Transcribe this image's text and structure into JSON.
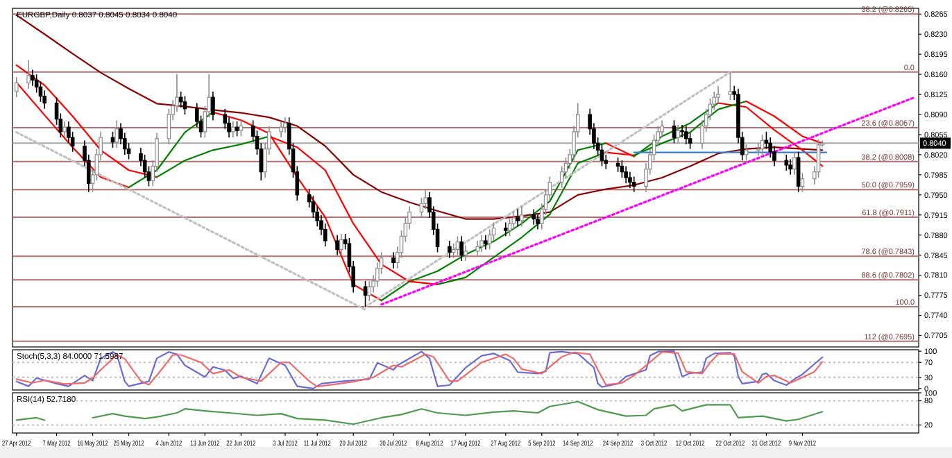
{
  "chart_data": [
    {
      "type": "candlestick",
      "title": "EURGBP,Daily  0.8037 0.8045 0.8034 0.8040",
      "tick_labels": "y",
      "xlim": [
        "2012-04-26",
        "2012-12-08"
      ],
      "ylim": [
        0.7685,
        0.8275
      ],
      "yticks": [
        0.8265,
        {
          "value": 0.823,
          "label": "0.8230"
        },
        0.8195,
        {
          "value": 0.816,
          "label": "0.8160"
        },
        0.8125,
        {
          "value": 0.809,
          "label": "0.8090"
        },
        0.8055,
        {
          "value": 0.802,
          "label": "0.8020"
        },
        0.7985,
        {
          "value": 0.795,
          "label": "0.7950"
        },
        0.7915,
        {
          "value": 0.788,
          "label": "0.7880"
        },
        0.7845,
        {
          "value": 0.781,
          "label": "0.7810"
        },
        0.7775,
        {
          "value": 0.774,
          "label": "0.7740"
        },
        0.7705
      ],
      "x": [
        "2012-04-27",
        "2012-04-30",
        "2012-05-01",
        "2012-05-02",
        "2012-05-03",
        "2012-05-04",
        "2012-05-07",
        "2012-05-08",
        "2012-05-09",
        "2012-05-10",
        "2012-05-11",
        "2012-05-14",
        "2012-05-15",
        "2012-05-16",
        "2012-05-17",
        "2012-05-18",
        "2012-05-21",
        "2012-05-22",
        "2012-05-23",
        "2012-05-24",
        "2012-05-25",
        "2012-05-28",
        "2012-05-29",
        "2012-05-30",
        "2012-05-31",
        "2012-06-01",
        "2012-06-04",
        "2012-06-05",
        "2012-06-06",
        "2012-06-07",
        "2012-06-08",
        "2012-06-11",
        "2012-06-12",
        "2012-06-13",
        "2012-06-14",
        "2012-06-15",
        "2012-06-18",
        "2012-06-19",
        "2012-06-20",
        "2012-06-21",
        "2012-06-22",
        "2012-06-25",
        "2012-06-26",
        "2012-06-27",
        "2012-06-28",
        "2012-06-29",
        "2012-07-02",
        "2012-07-03",
        "2012-07-04",
        "2012-07-05",
        "2012-07-06",
        "2012-07-09",
        "2012-07-10",
        "2012-07-11",
        "2012-07-12",
        "2012-07-13",
        "2012-07-16",
        "2012-07-17",
        "2012-07-18",
        "2012-07-19",
        "2012-07-20",
        "2012-07-23",
        "2012-07-24",
        "2012-07-25",
        "2012-07-26",
        "2012-07-27",
        "2012-07-30",
        "2012-07-31",
        "2012-08-01",
        "2012-08-02",
        "2012-08-03",
        "2012-08-06",
        "2012-08-07",
        "2012-08-08",
        "2012-08-09",
        "2012-08-10",
        "2012-08-13",
        "2012-08-14",
        "2012-08-15",
        "2012-08-16",
        "2012-08-17",
        "2012-08-20",
        "2012-08-21",
        "2012-08-22",
        "2012-08-23",
        "2012-08-24",
        "2012-08-27",
        "2012-08-28",
        "2012-08-29",
        "2012-08-30",
        "2012-08-31",
        "2012-09-03",
        "2012-09-04",
        "2012-09-05",
        "2012-09-06",
        "2012-09-07",
        "2012-09-10",
        "2012-09-11",
        "2012-09-12",
        "2012-09-13",
        "2012-09-14",
        "2012-09-17",
        "2012-09-18",
        "2012-09-19",
        "2012-09-20",
        "2012-09-21",
        "2012-09-24",
        "2012-09-25",
        "2012-09-26",
        "2012-09-27",
        "2012-09-28",
        "2012-10-01",
        "2012-10-02",
        "2012-10-03",
        "2012-10-04",
        "2012-10-05",
        "2012-10-08",
        "2012-10-09",
        "2012-10-10",
        "2012-10-11",
        "2012-10-12",
        "2012-10-15",
        "2012-10-16",
        "2012-10-17",
        "2012-10-18",
        "2012-10-19",
        "2012-10-22",
        "2012-10-23",
        "2012-10-24",
        "2012-10-25",
        "2012-10-26",
        "2012-10-29",
        "2012-10-30",
        "2012-10-31",
        "2012-11-01",
        "2012-11-02",
        "2012-11-05",
        "2012-11-06",
        "2012-11-07",
        "2012-11-08",
        "2012-11-09",
        "2012-11-12",
        "2012-11-13",
        "2012-11-14"
      ],
      "ohlc": [
        [
          0.813,
          0.8155,
          0.812,
          0.8145
        ],
        [
          0.8145,
          0.8185,
          0.8135,
          0.8158
        ],
        [
          0.8158,
          0.8168,
          0.814,
          0.815
        ],
        [
          0.815,
          0.816,
          0.8128,
          0.8138
        ],
        [
          0.8138,
          0.8148,
          0.8112,
          0.8122
        ],
        [
          0.8122,
          0.8132,
          0.81,
          0.811
        ],
        [
          0.811,
          0.812,
          0.8072,
          0.8082
        ],
        [
          0.8082,
          0.8092,
          0.805,
          0.806
        ],
        [
          0.806,
          0.8078,
          0.805,
          0.8068
        ],
        [
          0.8068,
          0.8078,
          0.804,
          0.805
        ],
        [
          0.805,
          0.806,
          0.8025,
          0.8035
        ],
        [
          0.8035,
          0.8045,
          0.8,
          0.801
        ],
        [
          0.801,
          0.802,
          0.7955,
          0.797
        ],
        [
          0.797,
          0.7995,
          0.7955,
          0.7985
        ],
        [
          0.7985,
          0.803,
          0.7975,
          0.802
        ],
        [
          0.802,
          0.806,
          0.801,
          0.805
        ],
        [
          0.805,
          0.806,
          0.8032,
          0.8042
        ],
        [
          0.8042,
          0.808,
          0.8032,
          0.8065
        ],
        [
          0.8065,
          0.8075,
          0.8038,
          0.8048
        ],
        [
          0.8048,
          0.8058,
          0.802,
          0.803
        ],
        [
          0.803,
          0.804,
          0.8012,
          0.8022
        ],
        [
          0.8022,
          0.8032,
          0.8,
          0.801
        ],
        [
          0.801,
          0.802,
          0.798,
          0.799
        ],
        [
          0.799,
          0.8,
          0.7965,
          0.7975
        ],
        [
          0.7975,
          0.801,
          0.7965,
          0.8
        ],
        [
          0.8,
          0.8058,
          0.799,
          0.8048
        ],
        [
          0.8048,
          0.81,
          0.8038,
          0.809
        ],
        [
          0.809,
          0.8115,
          0.808,
          0.8105
        ],
        [
          0.8105,
          0.816,
          0.8095,
          0.812
        ],
        [
          0.812,
          0.813,
          0.8102,
          0.8112
        ],
        [
          0.8112,
          0.8122,
          0.809,
          0.81
        ],
        [
          0.81,
          0.811,
          0.8068,
          0.8078
        ],
        [
          0.8078,
          0.8088,
          0.805,
          0.806
        ],
        [
          0.806,
          0.8105,
          0.805,
          0.8095
        ],
        [
          0.8095,
          0.816,
          0.8085,
          0.812
        ],
        [
          0.812,
          0.813,
          0.808,
          0.809
        ],
        [
          0.809,
          0.81,
          0.8065,
          0.8075
        ],
        [
          0.8075,
          0.8085,
          0.805,
          0.806
        ],
        [
          0.806,
          0.8078,
          0.805,
          0.8068
        ],
        [
          0.8068,
          0.8078,
          0.8052,
          0.8062
        ],
        [
          0.8062,
          0.808,
          0.8052,
          0.807
        ],
        [
          0.807,
          0.808,
          0.8042,
          0.8052
        ],
        [
          0.8052,
          0.8062,
          0.802,
          0.803
        ],
        [
          0.803,
          0.804,
          0.7975,
          0.799
        ],
        [
          0.799,
          0.804,
          0.798,
          0.803
        ],
        [
          0.803,
          0.807,
          0.802,
          0.806
        ],
        [
          0.806,
          0.8078,
          0.805,
          0.8068
        ],
        [
          0.8068,
          0.8085,
          0.8058,
          0.8075
        ],
        [
          0.8075,
          0.8085,
          0.802,
          0.803
        ],
        [
          0.803,
          0.804,
          0.798,
          0.799
        ],
        [
          0.799,
          0.8,
          0.794,
          0.795
        ],
        [
          0.795,
          0.796,
          0.7928,
          0.7938
        ],
        [
          0.7938,
          0.7948,
          0.791,
          0.792
        ],
        [
          0.792,
          0.793,
          0.7895,
          0.7905
        ],
        [
          0.7905,
          0.7915,
          0.788,
          0.789
        ],
        [
          0.789,
          0.79,
          0.786,
          0.787
        ],
        [
          0.787,
          0.788,
          0.7845,
          0.7855
        ],
        [
          0.7855,
          0.7882,
          0.7845,
          0.7872
        ],
        [
          0.7872,
          0.7882,
          0.7855,
          0.7865
        ],
        [
          0.7865,
          0.7875,
          0.7815,
          0.7825
        ],
        [
          0.7825,
          0.7835,
          0.778,
          0.779
        ],
        [
          0.779,
          0.78,
          0.7755,
          0.7775
        ],
        [
          0.7775,
          0.78,
          0.7765,
          0.779
        ],
        [
          0.779,
          0.781,
          0.778,
          0.78
        ],
        [
          0.78,
          0.7832,
          0.779,
          0.7822
        ],
        [
          0.7822,
          0.785,
          0.7812,
          0.784
        ],
        [
          0.784,
          0.785,
          0.7822,
          0.7832
        ],
        [
          0.7832,
          0.786,
          0.7822,
          0.785
        ],
        [
          0.785,
          0.7888,
          0.784,
          0.7878
        ],
        [
          0.7878,
          0.791,
          0.7868,
          0.79
        ],
        [
          0.79,
          0.793,
          0.789,
          0.792
        ],
        [
          0.792,
          0.7945,
          0.791,
          0.7935
        ],
        [
          0.7935,
          0.796,
          0.7925,
          0.7945
        ],
        [
          0.7945,
          0.7955,
          0.791,
          0.792
        ],
        [
          0.792,
          0.793,
          0.788,
          0.789
        ],
        [
          0.789,
          0.79,
          0.785,
          0.786
        ],
        [
          0.786,
          0.787,
          0.784,
          0.785
        ],
        [
          0.785,
          0.7865,
          0.784,
          0.7855
        ],
        [
          0.7855,
          0.7878,
          0.7845,
          0.7868
        ],
        [
          0.7868,
          0.7878,
          0.7835,
          0.7845
        ],
        [
          0.7845,
          0.7862,
          0.7835,
          0.7852
        ],
        [
          0.7852,
          0.787,
          0.7842,
          0.786
        ],
        [
          0.786,
          0.788,
          0.785,
          0.787
        ],
        [
          0.787,
          0.788,
          0.7855,
          0.7865
        ],
        [
          0.7865,
          0.789,
          0.7855,
          0.788
        ],
        [
          0.788,
          0.7902,
          0.787,
          0.7892
        ],
        [
          0.7892,
          0.7902,
          0.7878,
          0.7888
        ],
        [
          0.7888,
          0.791,
          0.7878,
          0.79
        ],
        [
          0.79,
          0.792,
          0.789,
          0.791
        ],
        [
          0.791,
          0.7925,
          0.7895,
          0.7905
        ],
        [
          0.7905,
          0.793,
          0.7895,
          0.7915
        ],
        [
          0.7915,
          0.7925,
          0.7898,
          0.7908
        ],
        [
          0.7908,
          0.7918,
          0.789,
          0.79
        ],
        [
          0.79,
          0.7935,
          0.789,
          0.7925
        ],
        [
          0.7925,
          0.796,
          0.7915,
          0.795
        ],
        [
          0.795,
          0.7982,
          0.794,
          0.7972
        ],
        [
          0.7972,
          0.8,
          0.7962,
          0.799
        ],
        [
          0.799,
          0.8015,
          0.798,
          0.8005
        ],
        [
          0.8005,
          0.803,
          0.7995,
          0.802
        ],
        [
          0.802,
          0.807,
          0.801,
          0.806
        ],
        [
          0.806,
          0.811,
          0.805,
          0.809
        ],
        [
          0.809,
          0.81,
          0.8055,
          0.8065
        ],
        [
          0.8065,
          0.8075,
          0.803,
          0.804
        ],
        [
          0.804,
          0.805,
          0.8018,
          0.8028
        ],
        [
          0.8028,
          0.8038,
          0.8,
          0.801
        ],
        [
          0.801,
          0.802,
          0.7995,
          0.8005
        ],
        [
          0.8005,
          0.8015,
          0.799,
          0.8
        ],
        [
          0.8,
          0.801,
          0.798,
          0.799
        ],
        [
          0.799,
          0.8,
          0.797,
          0.798
        ],
        [
          0.798,
          0.799,
          0.7962,
          0.7972
        ],
        [
          0.7972,
          0.7982,
          0.7955,
          0.7965
        ],
        [
          0.7965,
          0.8005,
          0.7955,
          0.7995
        ],
        [
          0.7995,
          0.803,
          0.7985,
          0.802
        ],
        [
          0.802,
          0.8055,
          0.801,
          0.8045
        ],
        [
          0.8045,
          0.807,
          0.8035,
          0.806
        ],
        [
          0.806,
          0.808,
          0.805,
          0.807
        ],
        [
          0.807,
          0.808,
          0.804,
          0.805
        ],
        [
          0.805,
          0.8072,
          0.804,
          0.8062
        ],
        [
          0.8062,
          0.8072,
          0.805,
          0.806
        ],
        [
          0.806,
          0.807,
          0.8038,
          0.8048
        ],
        [
          0.8048,
          0.8058,
          0.803,
          0.804
        ],
        [
          0.804,
          0.808,
          0.803,
          0.807
        ],
        [
          0.807,
          0.81,
          0.806,
          0.809
        ],
        [
          0.809,
          0.8118,
          0.808,
          0.8108
        ],
        [
          0.8108,
          0.813,
          0.8098,
          0.812
        ],
        [
          0.812,
          0.814,
          0.811,
          0.8125
        ],
        [
          0.8125,
          0.8164,
          0.8115,
          0.813
        ],
        [
          0.813,
          0.814,
          0.8115,
          0.8125
        ],
        [
          0.8125,
          0.8135,
          0.804,
          0.805
        ],
        [
          0.805,
          0.806,
          0.801,
          0.802
        ],
        [
          0.802,
          0.8038,
          0.801,
          0.8028
        ],
        [
          0.8028,
          0.804,
          0.8018,
          0.803
        ],
        [
          0.803,
          0.8055,
          0.802,
          0.8045
        ],
        [
          0.8045,
          0.806,
          0.803,
          0.804
        ],
        [
          0.804,
          0.805,
          0.8015,
          0.8025
        ],
        [
          0.8025,
          0.8035,
          0.8,
          0.801
        ],
        [
          0.801,
          0.802,
          0.7992,
          0.8002
        ],
        [
          0.8002,
          0.8012,
          0.7985,
          0.7995
        ],
        [
          0.7995,
          0.8025,
          0.7985,
          0.8015
        ],
        [
          0.8015,
          0.8025,
          0.7955,
          0.7965
        ],
        [
          0.7965,
          0.7988,
          0.7955,
          0.7978
        ],
        [
          0.7978,
          0.8,
          0.7968,
          0.799
        ],
        [
          0.799,
          0.8047,
          0.798,
          0.8037
        ],
        [
          0.8037,
          0.8045,
          0.8034,
          0.804
        ]
      ],
      "series": [
        {
          "type": "line",
          "color": "#8b0000",
          "x": [
            "2012-04-27",
            "2012-05-04",
            "2012-05-11",
            "2012-05-18",
            "2012-05-25",
            "2012-06-01",
            "2012-06-08",
            "2012-06-15",
            "2012-06-22",
            "2012-06-29",
            "2012-07-06",
            "2012-07-13",
            "2012-07-20",
            "2012-07-27",
            "2012-08-03",
            "2012-08-10",
            "2012-08-17",
            "2012-08-24",
            "2012-08-31",
            "2012-09-07",
            "2012-09-14",
            "2012-09-21",
            "2012-09-28",
            "2012-10-05",
            "2012-10-12",
            "2012-10-19",
            "2012-10-26",
            "2012-11-02",
            "2012-11-09",
            "2012-11-14"
          ],
          "values": [
            0.8263,
            0.823,
            0.8196,
            0.8163,
            0.8135,
            0.8109,
            0.8104,
            0.8098,
            0.8093,
            0.8085,
            0.807,
            0.8035,
            0.7985,
            0.7955,
            0.7937,
            0.7922,
            0.7908,
            0.7908,
            0.7913,
            0.792,
            0.795,
            0.796,
            0.7967,
            0.798,
            0.8,
            0.8022,
            0.803,
            0.8033,
            0.803,
            0.8028
          ]
        },
        {
          "type": "line",
          "color": "#ff0000",
          "x": [
            "2012-04-27",
            "2012-05-04",
            "2012-05-11",
            "2012-05-18",
            "2012-05-25"
          ],
          "values": [
            0.8146,
            0.8089,
            0.8033,
            0.7981,
            0.7963
          ]
        },
        {
          "type": "line",
          "color": "#008000",
          "x": [
            "2012-05-25",
            "2012-06-01",
            "2012-06-08",
            "2012-06-15"
          ],
          "values": [
            0.7963,
            0.7993,
            0.8059,
            0.8094
          ]
        },
        {
          "type": "line",
          "color": "#ff0000",
          "x": [
            "2012-06-15",
            "2012-06-22",
            "2012-06-29",
            "2012-07-06",
            "2012-07-13",
            "2012-07-20",
            "2012-07-27"
          ],
          "values": [
            0.8094,
            0.808,
            0.8057,
            0.7981,
            0.7911,
            0.7794,
            0.7766
          ]
        },
        {
          "type": "line",
          "color": "#008000",
          "x": [
            "2012-07-27",
            "2012-08-03",
            "2012-08-10",
            "2012-08-17",
            "2012-08-24",
            "2012-08-31",
            "2012-09-07",
            "2012-09-14",
            "2012-09-21"
          ],
          "values": [
            0.7766,
            0.7799,
            0.7817,
            0.7846,
            0.7869,
            0.79,
            0.7939,
            0.8028,
            0.804
          ]
        },
        {
          "type": "line",
          "color": "#ff0000",
          "x": [
            "2012-09-21",
            "2012-09-28"
          ],
          "values": [
            0.804,
            0.8017
          ]
        },
        {
          "type": "line",
          "color": "#008000",
          "x": [
            "2012-09-28",
            "2012-10-05",
            "2012-10-12",
            "2012-10-19"
          ],
          "values": [
            0.8017,
            0.8052,
            0.8075,
            0.811
          ]
        },
        {
          "type": "line",
          "color": "#ff0000",
          "x": [
            "2012-10-19",
            "2012-10-26",
            "2012-11-02",
            "2012-11-09",
            "2012-11-14"
          ],
          "values": [
            0.811,
            0.8103,
            0.8063,
            0.8028,
            0.8
          ]
        },
        {
          "type": "line",
          "color": "#ff0000",
          "x": [
            "2012-04-27",
            "2012-05-04",
            "2012-05-11",
            "2012-05-18",
            "2012-05-25",
            "2012-06-01"
          ],
          "values": [
            0.8176,
            0.8141,
            0.8087,
            0.8028,
            0.7993,
            0.7981
          ]
        },
        {
          "type": "line",
          "color": "#008000",
          "x": [
            "2012-06-01",
            "2012-06-08",
            "2012-06-15",
            "2012-06-22",
            "2012-06-29"
          ],
          "values": [
            0.7981,
            0.801,
            0.8028,
            0.8038,
            0.8052
          ]
        },
        {
          "type": "line",
          "color": "#ff0000",
          "x": [
            "2012-06-29",
            "2012-07-06",
            "2012-07-13",
            "2012-07-20",
            "2012-07-27",
            "2012-08-03",
            "2012-08-10"
          ],
          "values": [
            0.8052,
            0.8033,
            0.7993,
            0.79,
            0.7829,
            0.7799,
            0.7794
          ]
        },
        {
          "type": "line",
          "color": "#008000",
          "x": [
            "2012-08-10",
            "2012-08-17",
            "2012-08-24",
            "2012-08-31",
            "2012-09-07",
            "2012-09-14",
            "2012-09-21"
          ],
          "values": [
            0.7794,
            0.7806,
            0.7841,
            0.7876,
            0.7916,
            0.8005,
            0.8024
          ]
        },
        {
          "type": "line",
          "color": "#ff0000",
          "x": [
            "2012-09-21",
            "2012-09-28"
          ],
          "values": [
            0.8024,
            0.8019
          ]
        },
        {
          "type": "line",
          "color": "#008000",
          "x": [
            "2012-09-28",
            "2012-10-05",
            "2012-10-12",
            "2012-10-19",
            "2012-10-26"
          ],
          "values": [
            0.8019,
            0.804,
            0.8059,
            0.8099,
            0.8113
          ]
        },
        {
          "type": "line",
          "color": "#ff0000",
          "x": [
            "2012-10-26",
            "2012-11-02",
            "2012-11-09",
            "2012-11-14"
          ],
          "values": [
            0.8113,
            0.8087,
            0.8052,
            0.804
          ]
        },
        {
          "type": "line",
          "color": "#c0c0c0",
          "line_style": "dotted",
          "x": [
            "2012-04-27",
            "2012-07-23"
          ],
          "values": [
            0.8059,
            0.775
          ]
        },
        {
          "type": "line",
          "color": "#c0c0c0",
          "line_style": "dotted",
          "x": [
            "2012-07-23",
            "2012-10-22"
          ],
          "values": [
            0.7755,
            0.8164
          ]
        },
        {
          "type": "line",
          "color": "#3a7dc9",
          "x": [
            "2012-09-28",
            "2012-11-15"
          ],
          "values": [
            0.8024,
            0.8024
          ]
        },
        {
          "type": "line",
          "color": "#ff00ff",
          "line_style": "dotted",
          "x": [
            "2012-07-27",
            "2012-12-07"
          ],
          "values": [
            0.7759,
            0.812
          ]
        }
      ],
      "ref_lines": [
        {
          "axis": "y",
          "value": 0.8265,
          "label": "38.2 (@0.8265)",
          "color": "#b07070"
        },
        {
          "axis": "y",
          "value": 0.8164,
          "color": "#b07070"
        },
        {
          "axis": "y",
          "value": 0.8067,
          "label": "23.6 (@0.8067)",
          "color": "#b07070"
        },
        {
          "axis": "y",
          "value": 0.8008,
          "label": "38.2 (@0.8008)",
          "color": "#b07070"
        },
        {
          "axis": "y",
          "value": 0.7959,
          "label": "50.0 (@0.7959)",
          "color": "#b07070"
        },
        {
          "axis": "y",
          "value": 0.7911,
          "label": "61.8 (@0.7911)",
          "color": "#b07070"
        },
        {
          "axis": "y",
          "value": 0.7843,
          "label": "78.6 (@0.7843)",
          "color": "#b07070"
        },
        {
          "axis": "y",
          "value": 0.7802,
          "label": "88.6 (@0.7802)",
          "color": "#b07070"
        },
        {
          "axis": "y",
          "value": 0.7755,
          "color": "#b07070"
        },
        {
          "axis": "y",
          "value": 0.7695,
          "label": "112 (@0.7695)",
          "color": "#b07070"
        },
        {
          "axis": "y",
          "value": 0.804,
          "label": "0.8040",
          "color": "#a8a8a8",
          "line_style": "solid"
        }
      ],
      "annotations": [
        {
          "text": "0.0",
          "x": "2012-12-08",
          "y": 0.8164
        },
        {
          "text": "100.0",
          "x": "2012-12-08",
          "y": 0.7755
        }
      ]
    },
    {
      "type": "line",
      "title": "Stoch(5,3,3) 84.0000 71.5987",
      "tick_labels": "y",
      "xlim": [
        "2012-04-26",
        "2012-12-08"
      ],
      "ylim": [
        -4,
        104
      ],
      "yticks": [
        100,
        70,
        30,
        0
      ],
      "ref_lines": [
        {
          "axis": "y",
          "value": 70,
          "color": "#c0c0c0",
          "line_style": "dotted"
        },
        {
          "axis": "y",
          "value": 30,
          "color": "#c0c0c0",
          "line_style": "dotted"
        }
      ],
      "series": [
        {
          "color": "#6a6ad8",
          "x": [
            "2012-04-27",
            "2012-04-30",
            "2012-05-02",
            "2012-05-07",
            "2012-05-10",
            "2012-05-14",
            "2012-05-16",
            "2012-05-18",
            "2012-05-21",
            "2012-05-22",
            "2012-05-24",
            "2012-05-25",
            "2012-05-30",
            "2012-06-01",
            "2012-06-04",
            "2012-06-06",
            "2012-06-08",
            "2012-06-13",
            "2012-06-15",
            "2012-06-18",
            "2012-06-20",
            "2012-06-22",
            "2012-06-26",
            "2012-06-29",
            "2012-07-03",
            "2012-07-06",
            "2012-07-10",
            "2012-07-12",
            "2012-07-17",
            "2012-07-24",
            "2012-07-26",
            "2012-07-30",
            "2012-07-31",
            "2012-08-06",
            "2012-08-08",
            "2012-08-10",
            "2012-08-13",
            "2012-08-17",
            "2012-08-21",
            "2012-08-24",
            "2012-08-28",
            "2012-08-30",
            "2012-09-04",
            "2012-09-06",
            "2012-09-07",
            "2012-09-10",
            "2012-09-12",
            "2012-09-14",
            "2012-09-18",
            "2012-09-19",
            "2012-09-20",
            "2012-09-24",
            "2012-09-26",
            "2012-10-01",
            "2012-10-02",
            "2012-10-04",
            "2012-10-08",
            "2012-10-09",
            "2012-10-10",
            "2012-10-12",
            "2012-10-15",
            "2012-10-16",
            "2012-10-18",
            "2012-10-22",
            "2012-10-23",
            "2012-10-24",
            "2012-10-25",
            "2012-10-29",
            "2012-10-30",
            "2012-10-31",
            "2012-11-02",
            "2012-11-05",
            "2012-11-07",
            "2012-11-09",
            "2012-11-14"
          ],
          "values": [
            19,
            6,
            28,
            13,
            6,
            35,
            21,
            81,
            98,
            92,
            19,
            6,
            19,
            81,
            98,
            92,
            62,
            31,
            58,
            49,
            27,
            33,
            13,
            81,
            62,
            6,
            0,
            13,
            19,
            25,
            69,
            50,
            62,
            99,
            81,
            6,
            9,
            56,
            88,
            94,
            75,
            44,
            40,
            46,
            96,
            99,
            96,
            94,
            56,
            13,
            4,
            13,
            32,
            50,
            88,
            99,
            100,
            68,
            32,
            41,
            44,
            81,
            94,
            96,
            88,
            32,
            13,
            19,
            38,
            41,
            21,
            9,
            25,
            38,
            84
          ]
        },
        {
          "color": "#f06a6a",
          "x": [
            "2012-04-27",
            "2012-05-01",
            "2012-05-04",
            "2012-05-09",
            "2012-05-14",
            "2012-05-16",
            "2012-05-18",
            "2012-05-22",
            "2012-05-24",
            "2012-05-28",
            "2012-05-30",
            "2012-06-01",
            "2012-06-05",
            "2012-06-07",
            "2012-06-12",
            "2012-06-15",
            "2012-06-19",
            "2012-06-22",
            "2012-06-27",
            "2012-07-02",
            "2012-07-04",
            "2012-07-09",
            "2012-07-11",
            "2012-07-16",
            "2012-07-20",
            "2012-07-25",
            "2012-07-30",
            "2012-08-01",
            "2012-08-07",
            "2012-08-09",
            "2012-08-13",
            "2012-08-15",
            "2012-08-21",
            "2012-08-27",
            "2012-08-29",
            "2012-08-31",
            "2012-09-05",
            "2012-09-10",
            "2012-09-13",
            "2012-09-17",
            "2012-09-19",
            "2012-09-21",
            "2012-09-25",
            "2012-09-28",
            "2012-10-03",
            "2012-10-05",
            "2012-10-09",
            "2012-10-11",
            "2012-10-15",
            "2012-10-17",
            "2012-10-19",
            "2012-10-23",
            "2012-10-25",
            "2012-10-29",
            "2012-10-31",
            "2012-11-02",
            "2012-11-06",
            "2012-11-08",
            "2012-11-12",
            "2012-11-14"
          ],
          "values": [
            25,
            15,
            22,
            12,
            15,
            28,
            50,
            90,
            80,
            20,
            10,
            35,
            90,
            90,
            70,
            40,
            50,
            30,
            20,
            70,
            70,
            20,
            5,
            12,
            18,
            30,
            62,
            58,
            92,
            85,
            20,
            20,
            70,
            92,
            80,
            52,
            40,
            85,
            97,
            92,
            50,
            10,
            15,
            35,
            80,
            98,
            95,
            45,
            40,
            70,
            92,
            93,
            45,
            15,
            32,
            35,
            15,
            25,
            45,
            72
          ]
        }
      ]
    },
    {
      "type": "line",
      "title": "RSI(14) 52.7180",
      "xlim": [
        "2012-04-26",
        "2012-12-08"
      ],
      "ylim": [
        0,
        100
      ],
      "yticks": [
        100,
        80,
        20
      ],
      "xticks": [
        {
          "value": "2012-04-27",
          "label": "27 Apr 2012"
        },
        {
          "value": "2012-05-07",
          "label": "7 May 2012"
        },
        {
          "value": "2012-05-16",
          "label": "16 May 2012"
        },
        {
          "value": "2012-05-25",
          "label": "25 May 2012"
        },
        {
          "value": "2012-06-04",
          "label": "4 Jun 2012"
        },
        {
          "value": "2012-06-13",
          "label": "13 Jun 2012"
        },
        {
          "value": "2012-06-22",
          "label": "22 Jun 2012"
        },
        {
          "value": "2012-07-03",
          "label": "3 Jul 2012"
        },
        {
          "value": "2012-07-11",
          "label": "11 Jul 2012"
        },
        {
          "value": "2012-07-20",
          "label": "20 Jul 2012"
        },
        {
          "value": "2012-07-30",
          "label": "30 Jul 2012"
        },
        {
          "value": "2012-08-08",
          "label": "8 Aug 2012"
        },
        {
          "value": "2012-08-17",
          "label": "17 Aug 2012"
        },
        {
          "value": "2012-08-27",
          "label": "27 Aug 2012"
        },
        {
          "value": "2012-09-05",
          "label": "5 Sep 2012"
        },
        {
          "value": "2012-09-14",
          "label": "14 Sep 2012"
        },
        {
          "value": "2012-09-24",
          "label": "24 Sep 2012"
        },
        {
          "value": "2012-10-03",
          "label": "3 Oct 2012"
        },
        {
          "value": "2012-10-12",
          "label": "12 Oct 2012"
        },
        {
          "value": "2012-10-22",
          "label": "22 Oct 2012"
        },
        {
          "value": "2012-10-31",
          "label": "31 Oct 2012"
        },
        {
          "value": "2012-11-09",
          "label": "9 Nov 2012"
        }
      ],
      "ref_lines": [
        {
          "axis": "y",
          "value": 80,
          "color": "#c0c0c0",
          "line_style": "dotted"
        },
        {
          "axis": "y",
          "value": 20,
          "color": "#c0c0c0",
          "line_style": "dotted"
        }
      ],
      "series": [
        {
          "color": "#4f9a4f",
          "x": [
            "2012-04-27",
            "2012-05-02",
            "2012-05-04",
            "2012-05-09",
            "2012-05-16",
            "2012-05-21",
            "2012-05-24",
            "2012-05-29",
            "2012-06-01",
            "2012-06-06",
            "2012-06-08",
            "2012-06-13",
            "2012-06-19",
            "2012-06-26",
            "2012-07-02",
            "2012-07-06",
            "2012-07-13",
            "2012-07-20",
            "2012-07-27",
            "2012-08-01",
            "2012-08-06",
            "2012-08-10",
            "2012-08-17",
            "2012-08-24",
            "2012-08-29",
            "2012-09-04",
            "2012-09-07",
            "2012-09-14",
            "2012-09-19",
            "2012-09-26",
            "2012-10-01",
            "2012-10-03",
            "2012-10-08",
            "2012-10-10",
            "2012-10-16",
            "2012-10-22",
            "2012-10-24",
            "2012-10-30",
            "2012-11-05",
            "2012-11-08",
            "2012-11-14"
          ],
          "values": [
            32,
            38,
            32,
            null,
            38,
            48,
            42,
            36,
            40,
            50,
            60,
            55,
            50,
            44,
            48,
            36,
            32,
            22,
            38,
            46,
            60,
            50,
            44,
            52,
            55,
            50,
            66,
            78,
            58,
            42,
            44,
            60,
            70,
            55,
            70,
            70,
            38,
            42,
            30,
            34,
            53
          ]
        }
      ]
    }
  ]
}
